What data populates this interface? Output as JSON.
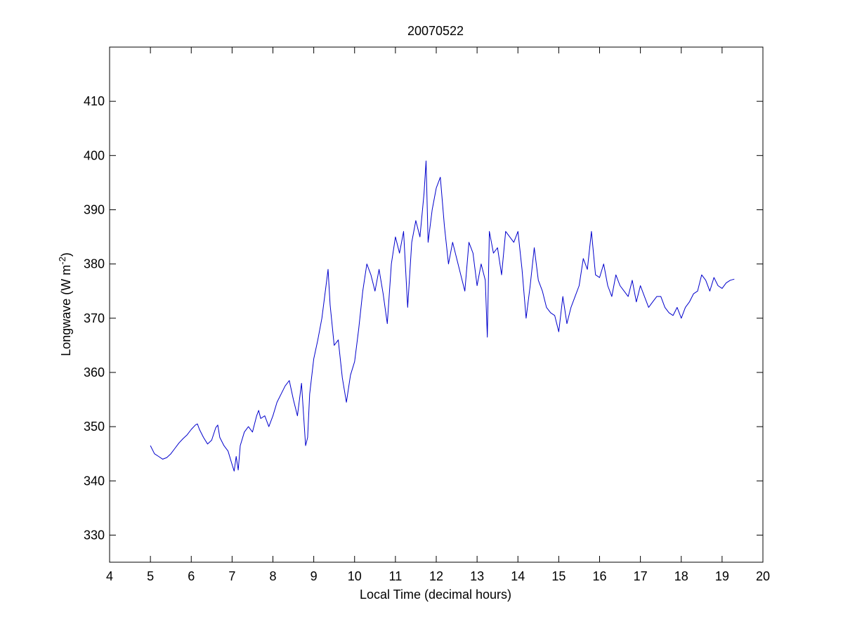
{
  "figure": {
    "background_color": "#ffffff",
    "axes_color": "#000000"
  },
  "chart_data": {
    "type": "line",
    "title": "20070522",
    "xlabel": "Local Time (decimal hours)",
    "ylabel": {
      "prefix": "Longwave (W m",
      "superscript": "-2",
      "suffix": ")"
    },
    "xlim": [
      4,
      20
    ],
    "ylim": [
      325,
      420
    ],
    "xticks": [
      4,
      5,
      6,
      7,
      8,
      9,
      10,
      11,
      12,
      13,
      14,
      15,
      16,
      17,
      18,
      19,
      20
    ],
    "xtick_labels": [
      "4",
      "5",
      "6",
      "7",
      "8",
      "9",
      "10",
      "11",
      "12",
      "13",
      "14",
      "15",
      "16",
      "17",
      "18",
      "19",
      "20"
    ],
    "yticks": [
      330,
      340,
      350,
      360,
      370,
      380,
      390,
      400,
      410
    ],
    "ytick_labels": [
      "330",
      "340",
      "350",
      "360",
      "370",
      "380",
      "390",
      "400",
      "410"
    ],
    "grid": false,
    "series": [
      {
        "color": "#0000cc",
        "x": [
          5.0,
          5.1,
          5.2,
          5.3,
          5.4,
          5.5,
          5.6,
          5.7,
          5.8,
          5.9,
          6.0,
          6.1,
          6.15,
          6.2,
          6.3,
          6.4,
          6.5,
          6.6,
          6.65,
          6.7,
          6.8,
          6.9,
          7.0,
          7.05,
          7.1,
          7.15,
          7.2,
          7.3,
          7.4,
          7.5,
          7.6,
          7.65,
          7.7,
          7.8,
          7.9,
          8.0,
          8.1,
          8.2,
          8.3,
          8.4,
          8.5,
          8.6,
          8.7,
          8.8,
          8.85,
          8.9,
          9.0,
          9.1,
          9.2,
          9.3,
          9.35,
          9.4,
          9.5,
          9.6,
          9.7,
          9.8,
          9.9,
          10.0,
          10.1,
          10.2,
          10.3,
          10.4,
          10.5,
          10.6,
          10.7,
          10.8,
          10.9,
          11.0,
          11.1,
          11.2,
          11.3,
          11.4,
          11.5,
          11.6,
          11.7,
          11.75,
          11.8,
          11.9,
          12.0,
          12.1,
          12.2,
          12.3,
          12.4,
          12.5,
          12.6,
          12.7,
          12.8,
          12.9,
          13.0,
          13.1,
          13.2,
          13.25,
          13.3,
          13.4,
          13.5,
          13.6,
          13.7,
          13.8,
          13.9,
          14.0,
          14.1,
          14.2,
          14.3,
          14.4,
          14.5,
          14.6,
          14.7,
          14.8,
          14.9,
          15.0,
          15.1,
          15.2,
          15.3,
          15.4,
          15.5,
          15.6,
          15.7,
          15.8,
          15.9,
          16.0,
          16.1,
          16.2,
          16.3,
          16.4,
          16.5,
          16.6,
          16.7,
          16.8,
          16.9,
          17.0,
          17.1,
          17.2,
          17.3,
          17.4,
          17.5,
          17.6,
          17.7,
          17.8,
          17.9,
          18.0,
          18.1,
          18.2,
          18.3,
          18.4,
          18.5,
          18.6,
          18.7,
          18.8,
          18.9,
          19.0,
          19.1,
          19.2,
          19.3
        ],
        "y": [
          346.5,
          345.0,
          344.5,
          344.0,
          344.3,
          345.0,
          346.0,
          347.0,
          347.8,
          348.5,
          349.5,
          350.3,
          350.5,
          349.5,
          348.0,
          346.8,
          347.5,
          349.8,
          350.3,
          348.0,
          346.5,
          345.5,
          343.0,
          341.8,
          344.5,
          342.0,
          346.5,
          349.0,
          350.0,
          349.0,
          352.0,
          353.0,
          351.5,
          352.0,
          350.0,
          352.0,
          354.5,
          356.0,
          357.5,
          358.5,
          355.0,
          352.0,
          358.0,
          346.5,
          348.0,
          356.0,
          362.5,
          366.0,
          370.0,
          376.0,
          379.0,
          372.5,
          365.0,
          366.0,
          359.0,
          354.5,
          359.5,
          362.0,
          368.0,
          375.0,
          380.0,
          378.0,
          375.0,
          379.0,
          374.5,
          369.0,
          380.0,
          385.0,
          382.0,
          386.0,
          372.0,
          384.0,
          388.0,
          385.0,
          393.0,
          399.0,
          384.0,
          390.0,
          394.0,
          396.0,
          387.0,
          380.0,
          384.0,
          381.0,
          378.0,
          375.0,
          384.0,
          382.0,
          376.0,
          380.0,
          377.0,
          366.5,
          386.0,
          382.0,
          383.0,
          378.0,
          386.0,
          385.0,
          384.0,
          386.0,
          379.0,
          370.0,
          376.0,
          383.0,
          377.0,
          375.0,
          372.0,
          371.0,
          370.5,
          367.5,
          374.0,
          369.0,
          372.0,
          374.0,
          376.0,
          381.0,
          379.0,
          386.0,
          378.0,
          377.5,
          380.0,
          376.0,
          374.0,
          378.0,
          376.0,
          375.0,
          374.0,
          377.0,
          373.0,
          376.0,
          374.0,
          372.0,
          373.0,
          374.0,
          374.0,
          372.0,
          371.0,
          370.5,
          372.0,
          370.0,
          372.0,
          373.0,
          374.5,
          375.0,
          378.0,
          377.0,
          375.0,
          377.5,
          376.0,
          375.5,
          376.5,
          377.0,
          377.2
        ]
      }
    ]
  }
}
